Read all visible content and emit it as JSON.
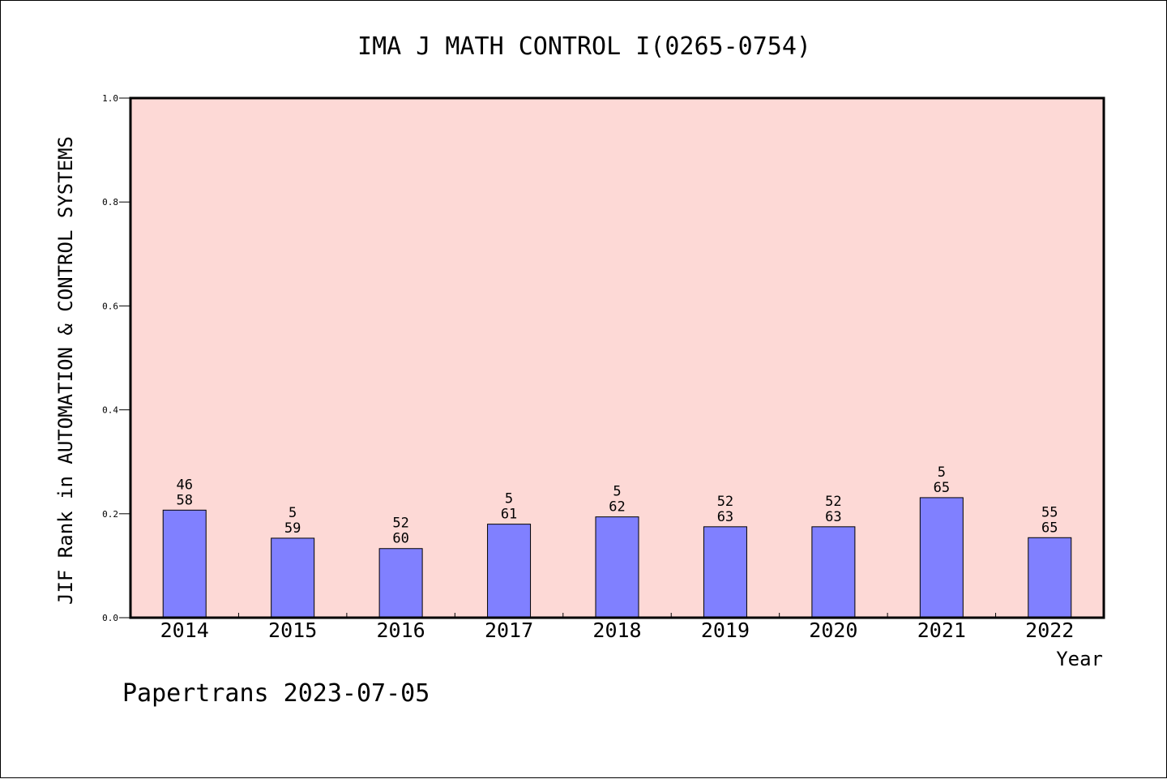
{
  "chart_data": {
    "type": "bar",
    "title": "IMA J MATH CONTROL I(0265-0754)",
    "xlabel": "Year",
    "ylabel": "JIF Rank in AUTOMATION & CONTROL SYSTEMS",
    "categories": [
      "2014",
      "2015",
      "2016",
      "2017",
      "2018",
      "2019",
      "2020",
      "2021",
      "2022"
    ],
    "values": [
      0.207,
      0.153,
      0.133,
      0.18,
      0.194,
      0.175,
      0.175,
      0.231,
      0.154
    ],
    "bar_labels": [
      [
        "46",
        "58"
      ],
      [
        "5",
        "59"
      ],
      [
        "52",
        "60"
      ],
      [
        "5",
        "61"
      ],
      [
        "5",
        "62"
      ],
      [
        "52",
        "63"
      ],
      [
        "52",
        "63"
      ],
      [
        "5",
        "65"
      ],
      [
        "55",
        "65"
      ]
    ],
    "ylim": [
      0,
      1.0
    ],
    "yticks": [
      "0.0",
      "0.2",
      "0.4",
      "0.6",
      "0.8",
      "1.0"
    ],
    "grid": false,
    "colors": {
      "bar": "#8080ff",
      "plot_background": "#fdd9d6",
      "axis": "#000000"
    }
  },
  "footer": {
    "credit": "Papertrans 2023-07-05"
  }
}
